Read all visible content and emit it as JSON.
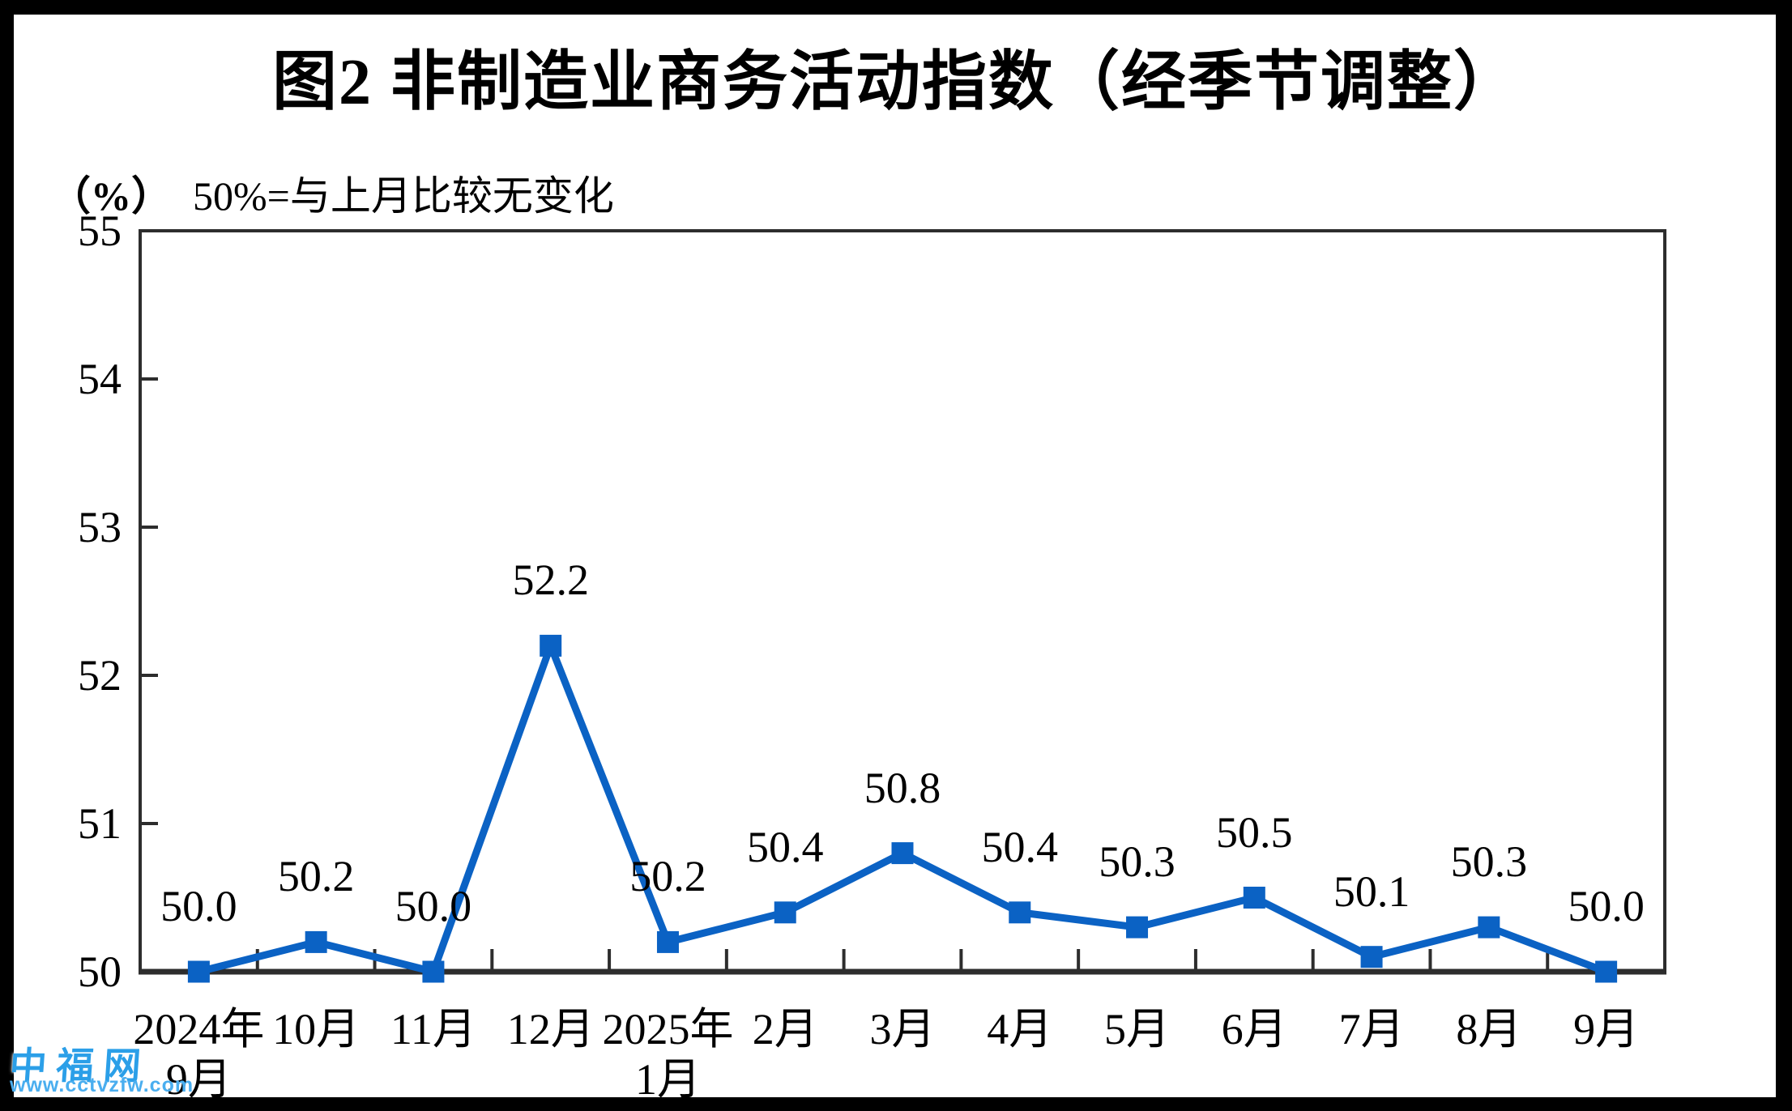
{
  "title": "图2 非制造业商务活动指数（经季节调整）",
  "subtitle": {
    "unit": "（%）",
    "note": "50%=与上月比较无变化"
  },
  "watermark": {
    "logo": "中福网",
    "url": "www.cctvzfw.com",
    "logo_color": "#2B9FE8",
    "url_color": "#4AAEEF"
  },
  "chart_data": {
    "type": "line",
    "title": "图2 非制造业商务活动指数（经季节调整）",
    "unit_label": "（%）",
    "note": "50%=与上月比较无变化",
    "categories": [
      [
        "2024年",
        "9月"
      ],
      [
        "10月"
      ],
      [
        "11月"
      ],
      [
        "12月"
      ],
      [
        "2025年",
        "1月"
      ],
      [
        "2月"
      ],
      [
        "3月"
      ],
      [
        "4月"
      ],
      [
        "5月"
      ],
      [
        "6月"
      ],
      [
        "7月"
      ],
      [
        "8月"
      ],
      [
        "9月"
      ]
    ],
    "values": [
      50.0,
      50.2,
      50.0,
      52.2,
      50.2,
      50.4,
      50.8,
      50.4,
      50.3,
      50.5,
      50.1,
      50.3,
      50.0
    ],
    "point_labels": [
      "50.0",
      "50.2",
      "50.0",
      "52.2",
      "50.2",
      "50.4",
      "50.8",
      "50.4",
      "50.3",
      "50.5",
      "50.1",
      "50.3",
      "50.0"
    ],
    "ylim": [
      50,
      55
    ],
    "yticks": [
      50,
      51,
      52,
      53,
      54,
      55
    ],
    "grid": false,
    "legend": "none",
    "marker": "square",
    "line_color": "#0B62C4",
    "axis_color": "#2D2D2D",
    "label_color": "#000000"
  }
}
